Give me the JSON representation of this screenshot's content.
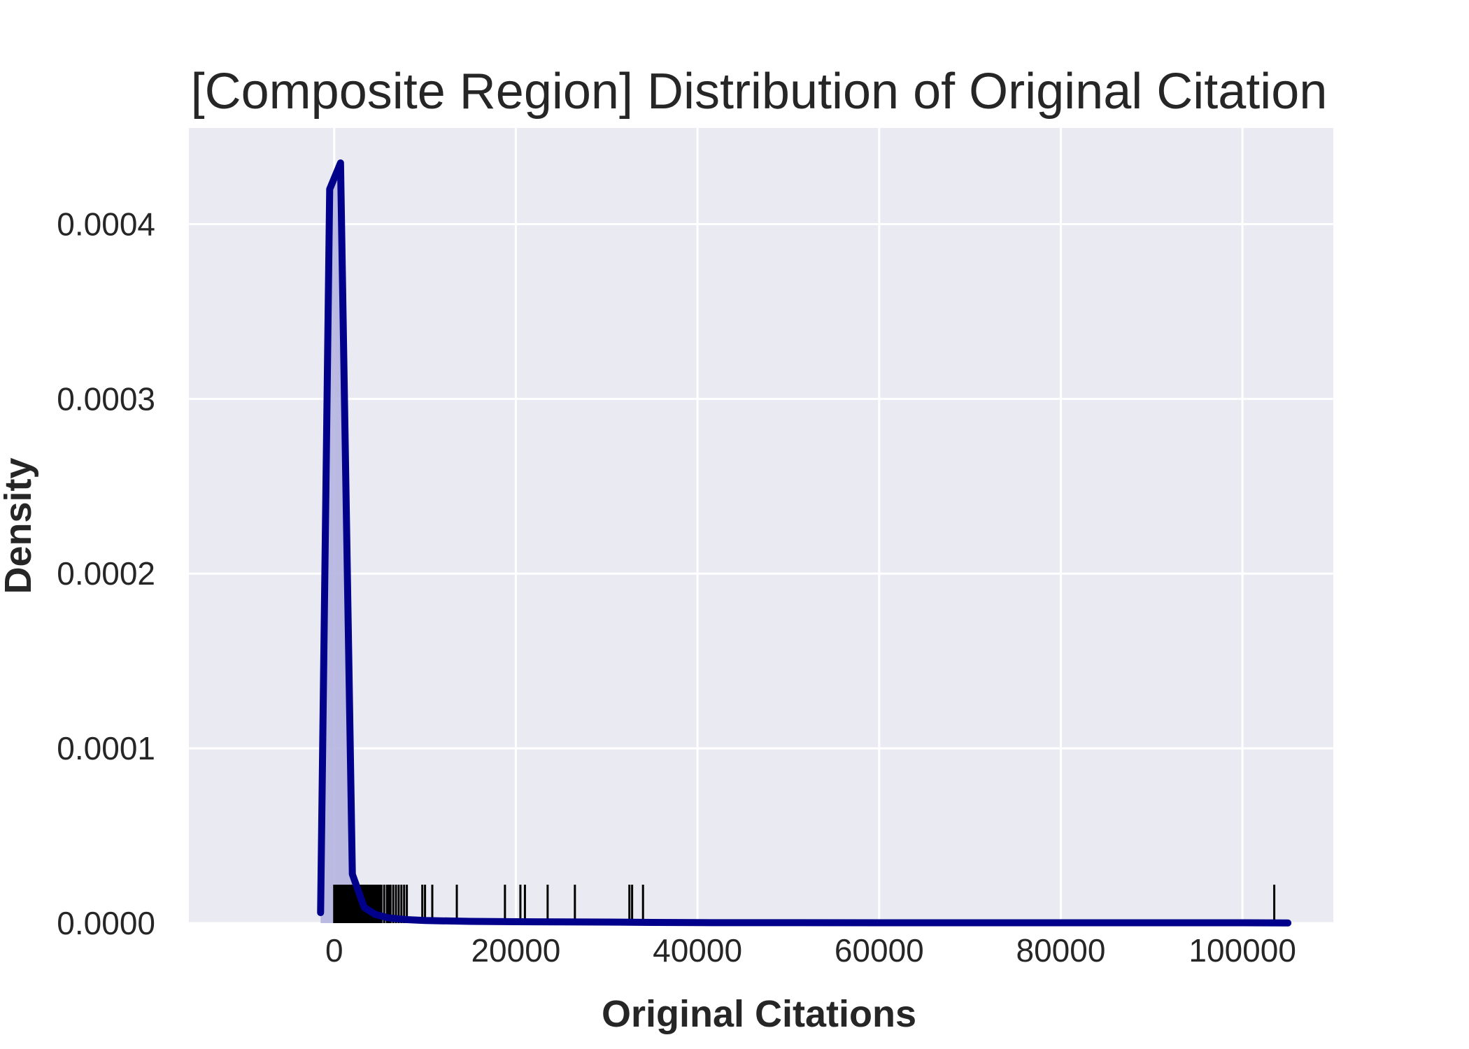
{
  "chart_data": {
    "type": "area",
    "title": "[Composite Region] Distribution of Original Citation",
    "xlabel": "Original Citations",
    "ylabel": "Density",
    "xlim": [
      -16000,
      110000
    ],
    "ylim": [
      0,
      0.000455
    ],
    "x_ticks": [
      0,
      20000,
      40000,
      60000,
      80000,
      100000
    ],
    "x_tick_labels": [
      "0",
      "20000",
      "40000",
      "60000",
      "80000",
      "100000"
    ],
    "y_ticks": [
      0,
      0.0001,
      0.0002,
      0.0003,
      0.0004
    ],
    "y_tick_labels": [
      "0.0000",
      "0.0001",
      "0.0002",
      "0.0003",
      "0.0004"
    ],
    "grid": true,
    "background": "#eaeaf2",
    "line_color": "#00008b",
    "fill_color": "#b4b4e0",
    "rug_color": "#000000",
    "series": [
      {
        "x": [
          -1500,
          -500,
          700,
          2000,
          3300,
          4500,
          6000,
          8000,
          10000,
          15000,
          20000,
          25000,
          30000,
          35000,
          40000,
          60000,
          80000,
          100000,
          105000
        ],
        "y": [
          6e-06,
          0.00042,
          0.000435,
          2.8e-05,
          9e-06,
          5e-06,
          3e-06,
          2e-06,
          1.5e-06,
          1e-06,
          8e-07,
          7e-07,
          6e-07,
          4e-07,
          3e-07,
          2e-07,
          2e-07,
          2e-07,
          1e-07
        ]
      }
    ],
    "rug_x": [
      0,
      150,
      300,
      450,
      600,
      750,
      900,
      1050,
      1200,
      1350,
      1500,
      1650,
      1800,
      1950,
      2100,
      2250,
      2400,
      2550,
      2700,
      2850,
      3000,
      3150,
      3300,
      3450,
      3600,
      3750,
      3900,
      4050,
      4200,
      4400,
      4600,
      4800,
      5000,
      5200,
      5500,
      5800,
      6000,
      6200,
      6500,
      6800,
      7100,
      7400,
      7700,
      8000,
      9700,
      10000,
      10800,
      13500,
      18800,
      20500,
      21000,
      23500,
      26500,
      32500,
      32800,
      34000,
      103500
    ]
  }
}
